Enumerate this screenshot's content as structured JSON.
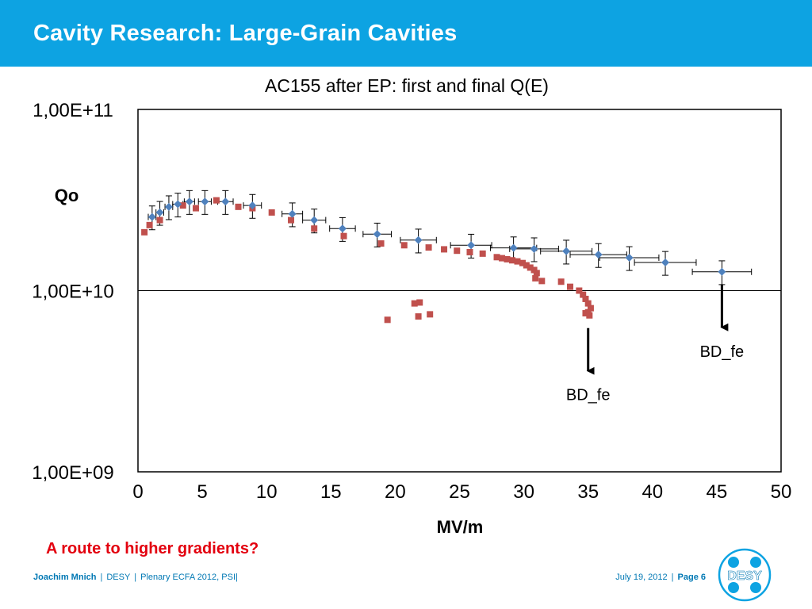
{
  "slide": {
    "title": "Cavity Research: Large-Grain Cavities",
    "caption": "A route to higher  gradients?"
  },
  "footer": {
    "author": "Joachim Mnich",
    "org": "DESY",
    "event": "Plenary ECFA  2012, PSI",
    "date": "July 19, 2012",
    "page_label": "Page",
    "page_number": "6",
    "logo_text": "DESY"
  },
  "colors": {
    "header": "#0da3e2",
    "series_first": "#4f81bd",
    "series_final": "#c0504d",
    "caption": "#e3000f"
  },
  "chart_data": {
    "type": "scatter",
    "title": "AC155 after EP: first and final Q(E)",
    "xlabel": "MV/m",
    "ylabel": "Qo",
    "xlim": [
      0,
      50
    ],
    "ylim": [
      1000000000.0,
      100000000000.0
    ],
    "yscale": "log",
    "xticks": [
      0,
      5,
      10,
      15,
      20,
      25,
      30,
      35,
      40,
      45,
      50
    ],
    "yticks": [
      {
        "value": 1000000000.0,
        "label": "1,00E+09"
      },
      {
        "value": 10000000000.0,
        "label": "1,00E+10"
      },
      {
        "value": 100000000000.0,
        "label": "1,00E+11"
      }
    ],
    "grid": "major horizontal at 1,00E+10",
    "series": [
      {
        "marker": "diamond",
        "color": "#4f81bd",
        "points": [
          {
            "x": 1.1,
            "y": 25500000000.0,
            "xerr": 0.3,
            "yerr": 0.15
          },
          {
            "x": 1.7,
            "y": 27000000000.0,
            "xerr": 0.3,
            "yerr": 0.15
          },
          {
            "x": 2.4,
            "y": 29000000000.0,
            "xerr": 0.3,
            "yerr": 0.15
          },
          {
            "x": 3.1,
            "y": 30000000000.0,
            "xerr": 0.4,
            "yerr": 0.15
          },
          {
            "x": 4.0,
            "y": 31000000000.0,
            "xerr": 0.4,
            "yerr": 0.15
          },
          {
            "x": 5.2,
            "y": 31000000000.0,
            "xerr": 0.5,
            "yerr": 0.15
          },
          {
            "x": 6.8,
            "y": 31000000000.0,
            "xerr": 0.6,
            "yerr": 0.15
          },
          {
            "x": 8.9,
            "y": 29500000000.0,
            "xerr": 0.7,
            "yerr": 0.15
          },
          {
            "x": 12.0,
            "y": 26500000000.0,
            "xerr": 0.8,
            "yerr": 0.15
          },
          {
            "x": 13.7,
            "y": 24500000000.0,
            "xerr": 0.9,
            "yerr": 0.15
          },
          {
            "x": 15.9,
            "y": 22000000000.0,
            "xerr": 1.0,
            "yerr": 0.15
          },
          {
            "x": 18.6,
            "y": 20500000000.0,
            "xerr": 1.1,
            "yerr": 0.15
          },
          {
            "x": 21.8,
            "y": 19000000000.0,
            "xerr": 1.4,
            "yerr": 0.15
          },
          {
            "x": 25.9,
            "y": 17800000000.0,
            "xerr": 1.6,
            "yerr": 0.15
          },
          {
            "x": 29.2,
            "y": 17200000000.0,
            "xerr": 1.8,
            "yerr": 0.15
          },
          {
            "x": 30.8,
            "y": 17000000000.0,
            "xerr": 1.9,
            "yerr": 0.15
          },
          {
            "x": 33.3,
            "y": 16500000000.0,
            "xerr": 2.0,
            "yerr": 0.15
          },
          {
            "x": 35.8,
            "y": 15800000000.0,
            "xerr": 2.2,
            "yerr": 0.15
          },
          {
            "x": 38.2,
            "y": 15200000000.0,
            "xerr": 2.3,
            "yerr": 0.15
          },
          {
            "x": 41.0,
            "y": 14300000000.0,
            "xerr": 2.4,
            "yerr": 0.15
          },
          {
            "x": 45.4,
            "y": 12700000000.0,
            "xerr": 2.3,
            "yerr": 0.15
          }
        ]
      },
      {
        "marker": "square",
        "color": "#c0504d",
        "points": [
          {
            "x": 0.5,
            "y": 21000000000.0
          },
          {
            "x": 0.9,
            "y": 23000000000.0
          },
          {
            "x": 1.7,
            "y": 24500000000.0
          },
          {
            "x": 3.5,
            "y": 29500000000.0
          },
          {
            "x": 4.5,
            "y": 28500000000.0
          },
          {
            "x": 6.1,
            "y": 31500000000.0
          },
          {
            "x": 7.8,
            "y": 29000000000.0
          },
          {
            "x": 8.9,
            "y": 28500000000.0
          },
          {
            "x": 10.4,
            "y": 27000000000.0
          },
          {
            "x": 11.9,
            "y": 24500000000.0
          },
          {
            "x": 13.7,
            "y": 22000000000.0
          },
          {
            "x": 16.0,
            "y": 20000000000.0
          },
          {
            "x": 18.9,
            "y": 18200000000.0
          },
          {
            "x": 20.7,
            "y": 17800000000.0
          },
          {
            "x": 22.6,
            "y": 17300000000.0
          },
          {
            "x": 23.8,
            "y": 16900000000.0
          },
          {
            "x": 24.8,
            "y": 16600000000.0
          },
          {
            "x": 25.8,
            "y": 16300000000.0
          },
          {
            "x": 26.8,
            "y": 16000000000.0
          },
          {
            "x": 27.9,
            "y": 15300000000.0
          },
          {
            "x": 28.3,
            "y": 15100000000.0
          },
          {
            "x": 28.7,
            "y": 14900000000.0
          },
          {
            "x": 29.1,
            "y": 14700000000.0
          },
          {
            "x": 29.5,
            "y": 14500000000.0
          },
          {
            "x": 29.9,
            "y": 14200000000.0
          },
          {
            "x": 30.2,
            "y": 13800000000.0
          },
          {
            "x": 30.5,
            "y": 13400000000.0
          },
          {
            "x": 30.8,
            "y": 13000000000.0
          },
          {
            "x": 31.0,
            "y": 12500000000.0
          },
          {
            "x": 30.9,
            "y": 11700000000.0
          },
          {
            "x": 31.4,
            "y": 11300000000.0
          },
          {
            "x": 32.9,
            "y": 11200000000.0
          },
          {
            "x": 33.6,
            "y": 10500000000.0
          },
          {
            "x": 34.3,
            "y": 10000000000.0
          },
          {
            "x": 34.6,
            "y": 9500000000.0
          },
          {
            "x": 34.8,
            "y": 9000000000.0
          },
          {
            "x": 35.0,
            "y": 8500000000.0
          },
          {
            "x": 35.2,
            "y": 8000000000.0
          },
          {
            "x": 35.0,
            "y": 7600000000.0
          },
          {
            "x": 34.8,
            "y": 7500000000.0
          },
          {
            "x": 35.1,
            "y": 7300000000.0
          },
          {
            "x": 19.4,
            "y": 6900000000.0
          },
          {
            "x": 21.5,
            "y": 8500000000.0
          },
          {
            "x": 21.9,
            "y": 8600000000.0
          },
          {
            "x": 21.8,
            "y": 7200000000.0
          },
          {
            "x": 22.7,
            "y": 7400000000.0
          }
        ]
      }
    ],
    "annotations": [
      {
        "text": "BD_fe",
        "x": 35.0,
        "y": 7300000000.0,
        "arrow": "down"
      },
      {
        "text": "BD_fe",
        "x": 45.4,
        "y": 12700000000.0,
        "arrow": "down"
      }
    ]
  }
}
